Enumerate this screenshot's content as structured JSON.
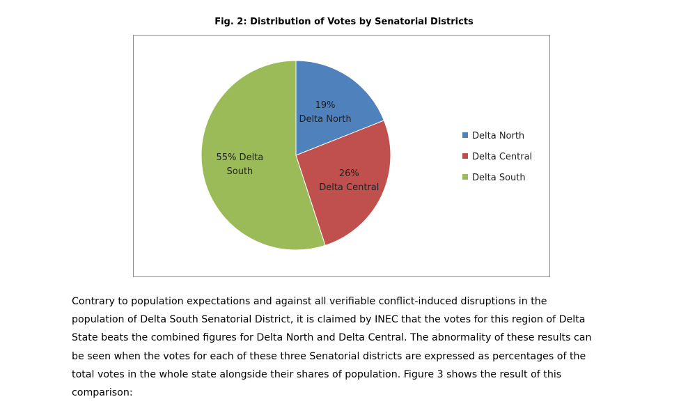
{
  "figure": {
    "title": "Fig. 2: Distribution of Votes by Senatorial Districts"
  },
  "chart_data": {
    "type": "pie",
    "title": "Fig. 2: Distribution of Votes by Senatorial Districts",
    "legend_position": "right",
    "slices": [
      {
        "name": "Delta North",
        "value": 19,
        "label_lines": [
          "19%",
          "Delta North"
        ],
        "color": "#4f81bd"
      },
      {
        "name": "Delta Central",
        "value": 26,
        "label_lines": [
          "26%",
          "Delta Central"
        ],
        "color": "#c0504d"
      },
      {
        "name": "Delta South",
        "value": 55,
        "label_lines": [
          "55% Delta",
          "South"
        ],
        "color": "#9bbb59"
      }
    ],
    "legend": [
      "Delta North",
      "Delta Central",
      "Delta South"
    ]
  },
  "paragraph": {
    "lines": [
      "Contrary to population expectations and against all verifiable conflict-induced disruptions in the",
      "population of Delta South Senatorial District, it is claimed by INEC that the votes for this region of Delta",
      "State beats the combined figures for Delta North and Delta Central. The abnormality of these results can",
      "be seen when the votes for each of these three Senatorial districts are expressed as percentages of the",
      "total votes in the whole state alongside their shares of population. Figure 3 shows the result of this",
      "comparison:"
    ]
  }
}
